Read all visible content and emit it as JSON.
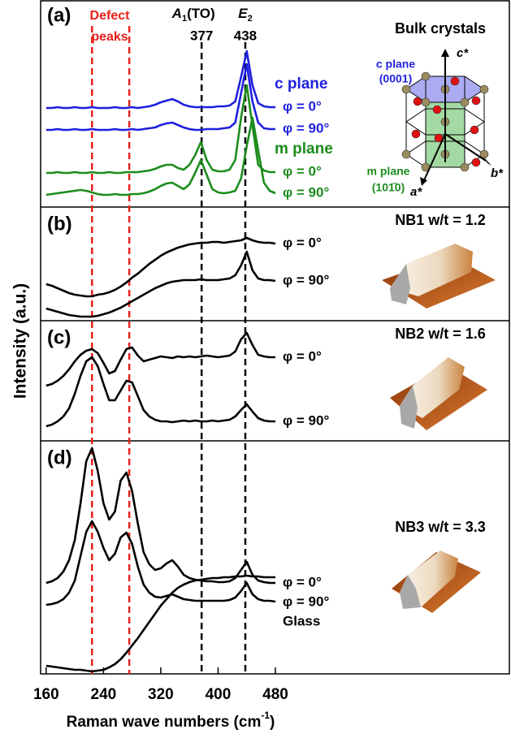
{
  "chart_data": {
    "type": "line",
    "x_label": "Raman wave numbers (cm",
    "x_label_sup": "-1",
    "x_label_end": ")",
    "y_label": "Intensity (a.u.)",
    "xlim": [
      150,
      480
    ],
    "xticks": [
      160,
      240,
      320,
      400,
      480
    ],
    "x": [
      160,
      168,
      176,
      184,
      192,
      200,
      208,
      216,
      224,
      232,
      240,
      248,
      256,
      264,
      272,
      280,
      288,
      296,
      304,
      312,
      320,
      328,
      336,
      344,
      352,
      360,
      368,
      376,
      384,
      392,
      400,
      408,
      416,
      424,
      432,
      440,
      448,
      456,
      464,
      472,
      480
    ],
    "defect_label": [
      "Defect",
      "peaks"
    ],
    "reference_lines": [
      {
        "x": 224,
        "color": "#e8201c"
      },
      {
        "x": 276,
        "color": "#e8201c"
      },
      {
        "x": 377,
        "color": "#000000"
      },
      {
        "x": 438,
        "color": "#000000"
      }
    ],
    "peak_labels": [
      {
        "main": "A",
        "sub": "1",
        "rest": "(TO)",
        "value": "377"
      },
      {
        "main": "E",
        "sub": "2",
        "rest": "",
        "value": "438"
      }
    ],
    "bulk": {
      "title": "Bulk crystals",
      "c_plane": "c plane",
      "c_index": "(0001)",
      "m_plane": "m plane",
      "m_index": "(101̄0)",
      "c_axis": "c*",
      "a_axis": "a*",
      "b_axis": "b*"
    },
    "panels": [
      {
        "label": "(a)",
        "ylim": [
          0,
          255
        ],
        "groups": [
          {
            "name": "c plane",
            "color": "#1f1fe0",
            "first": 0
          },
          {
            "name": "m plane",
            "color": "#1c8c1c",
            "first": 2
          }
        ],
        "series": [
          {
            "name": "φ = 0°",
            "color": "#1f1fe0",
            "values": [
              122,
              122,
              123,
              122,
              122,
              123,
              122,
              122,
              123,
              122,
              122,
              122,
              123,
              122,
              122,
              123,
              122,
              123,
              124,
              126,
              129,
              131,
              133,
              130,
              126,
              124,
              123,
              123,
              123,
              123,
              124,
              124,
              125,
              130,
              160,
              192,
              150,
              128,
              124,
              123,
              123
            ]
          },
          {
            "name": "φ = 90°",
            "color": "#1f1fe0",
            "values": [
              95,
              95,
              96,
              95,
              95,
              96,
              95,
              95,
              96,
              95,
              95,
              95,
              96,
              95,
              95,
              96,
              95,
              96,
              97,
              98,
              101,
              103,
              104,
              101,
              98,
              96,
              95,
              95,
              96,
              96,
              96,
              97,
              98,
              104,
              140,
              176,
              130,
              104,
              97,
              96,
              96
            ]
          },
          {
            "name": "φ = 0°",
            "color": "#1c8c1c",
            "values": [
              42,
              42,
              43,
              42,
              42,
              43,
              42,
              42,
              43,
              42,
              42,
              43,
              42,
              42,
              43,
              43,
              43,
              44,
              45,
              47,
              50,
              52,
              52,
              48,
              46,
              52,
              64,
              80,
              58,
              46,
              44,
              44,
              46,
              58,
              110,
              150,
              100,
              52,
              45,
              43,
              43
            ]
          },
          {
            "name": "φ = 90°",
            "color": "#1c8c1c",
            "values": [
              15,
              16,
              17,
              18,
              19,
              20,
              21,
              20,
              18,
              16,
              15,
              15,
              16,
              15,
              15,
              16,
              16,
              17,
              19,
              22,
              26,
              29,
              30,
              26,
              22,
              28,
              42,
              58,
              40,
              22,
              18,
              17,
              18,
              20,
              35,
              75,
              110,
              70,
              30,
              20,
              17
            ]
          }
        ]
      },
      {
        "label": "(b)",
        "ylim": [
          0,
          140
        ],
        "caption": "NB1 w/t = 1.2",
        "series": [
          {
            "name": "φ = 0°",
            "color": "#000000",
            "values": [
              45,
              43,
              40,
              37,
              34,
              32,
              31,
              30,
              30,
              32,
              33,
              35,
              38,
              42,
              47,
              53,
              58,
              64,
              70,
              75,
              80,
              84,
              87,
              90,
              92,
              94,
              95,
              96,
              96,
              97,
              97,
              96,
              97,
              98,
              99,
              102,
              99,
              97,
              96,
              96,
              95
            ]
          },
          {
            "name": "φ = 90°",
            "color": "#000000",
            "values": [
              15,
              13,
              11,
              9,
              7,
              6,
              5,
              5,
              5,
              6,
              8,
              10,
              13,
              16,
              20,
              24,
              28,
              32,
              36,
              40,
              43,
              46,
              48,
              49,
              50,
              50,
              50,
              51,
              50,
              50,
              50,
              51,
              52,
              56,
              68,
              85,
              62,
              52,
              50,
              50,
              49
            ]
          }
        ]
      },
      {
        "label": "(c)",
        "ylim": [
          0,
          148
        ],
        "caption": "NB2 w/t = 1.6",
        "series": [
          {
            "name": "φ = 0°",
            "color": "#000000",
            "values": [
              68,
              70,
              74,
              80,
              88,
              98,
              106,
              111,
              113,
              108,
              96,
              83,
              86,
              100,
              113,
              115,
              105,
              98,
              100,
              102,
              104,
              103,
              102,
              104,
              103,
              104,
              103,
              104,
              105,
              104,
              103,
              104,
              105,
              110,
              125,
              133,
              118,
              106,
              104,
              103,
              103
            ]
          },
          {
            "name": "φ = 90°",
            "color": "#000000",
            "values": [
              18,
              20,
              24,
              30,
              40,
              58,
              80,
              98,
              103,
              92,
              70,
              50,
              50,
              62,
              74,
              72,
              55,
              38,
              30,
              26,
              24,
              24,
              23,
              24,
              25,
              24,
              25,
              24,
              24,
              25,
              24,
              25,
              26,
              30,
              38,
              45,
              36,
              28,
              25,
              24,
              24
            ]
          }
        ]
      },
      {
        "label": "(d)",
        "ylim": [
          0,
          287
        ],
        "caption": "NB3 w/t = 3.3",
        "series": [
          {
            "name": "φ = 0°",
            "color": "#000000",
            "values": [
              112,
              114,
              118,
              126,
              140,
              165,
              210,
              262,
              278,
              250,
              210,
              190,
              200,
              238,
              248,
              225,
              185,
              150,
              135,
              128,
              130,
              136,
              140,
              132,
              122,
              118,
              116,
              115,
              114,
              114,
              113,
              113,
              114,
              118,
              128,
              138,
              122,
              115,
              113,
              112,
              112
            ]
          },
          {
            "name": "φ = 90°",
            "color": "#000000",
            "values": [
              85,
              86,
              88,
              92,
              100,
              115,
              145,
              175,
              188,
              175,
              155,
              140,
              148,
              168,
              174,
              160,
              132,
              110,
              100,
              95,
              94,
              96,
              98,
              95,
              92,
              91,
              90,
              90,
              90,
              90,
              90,
              90,
              91,
              94,
              102,
              112,
              98,
              92,
              90,
              90,
              89
            ]
          },
          {
            "name": "Glass",
            "color": "#000000",
            "values": [
              10,
              9,
              8,
              7,
              6,
              5,
              5,
              4,
              3,
              4,
              5,
              8,
              12,
              18,
              26,
              35,
              44,
              54,
              64,
              74,
              84,
              92,
              100,
              106,
              110,
              113,
              115,
              116,
              117,
              118,
              118,
              119,
              119,
              120,
              120,
              121,
              120,
              120,
              119,
              119,
              119
            ]
          }
        ]
      }
    ]
  }
}
